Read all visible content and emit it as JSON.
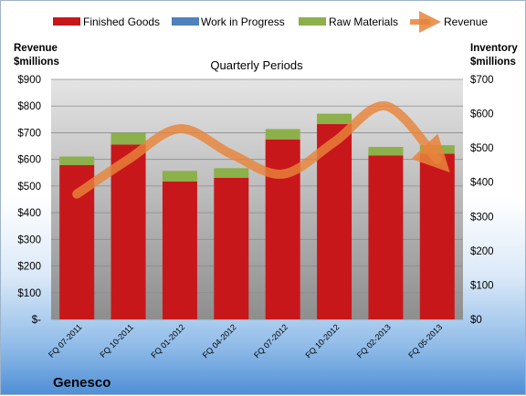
{
  "chart_data": {
    "type": "bar",
    "title": "Quarterly Periods",
    "company": "Genesco",
    "ylabel_left": [
      "Revenue",
      "$millions"
    ],
    "ylabel_right": [
      "Inventory",
      "$millions"
    ],
    "categories": [
      "FQ 07-2011",
      "FQ 10-2011",
      "FQ 01-2012",
      "FQ 04-2012",
      "FQ 07-2012",
      "FQ 10-2012",
      "FQ 02-2013",
      "FQ 05-2013"
    ],
    "ylim_left": [
      0,
      900
    ],
    "ylim_right": [
      0,
      700
    ],
    "left_ticks": [
      "$-",
      "$100",
      "$200",
      "$300",
      "$400",
      "$500",
      "$600",
      "$700",
      "$800",
      "$900"
    ],
    "right_ticks": [
      "$0",
      "$100",
      "$200",
      "$300",
      "$400",
      "$500",
      "$600",
      "$700"
    ],
    "series": [
      {
        "name": "Finished Goods",
        "axis": "right",
        "kind": "bar",
        "color": "#c8171b",
        "values": [
          450,
          510,
          402,
          413,
          525,
          570,
          478,
          483
        ]
      },
      {
        "name": "Work in Progress",
        "axis": "right",
        "kind": "bar",
        "color": "#4f81bd",
        "values": [
          0,
          0,
          0,
          0,
          0,
          0,
          0,
          0
        ]
      },
      {
        "name": "Raw Materials",
        "axis": "right",
        "kind": "bar",
        "color": "#8cb04a",
        "values": [
          25,
          34,
          31,
          28,
          30,
          30,
          25,
          25
        ]
      },
      {
        "name": "Revenue",
        "axis": "left",
        "kind": "line",
        "color": "#e8843b",
        "values": [
          470,
          600,
          715,
          620,
          545,
          665,
          800,
          600
        ]
      }
    ],
    "grid": true,
    "legend_position": "top"
  }
}
